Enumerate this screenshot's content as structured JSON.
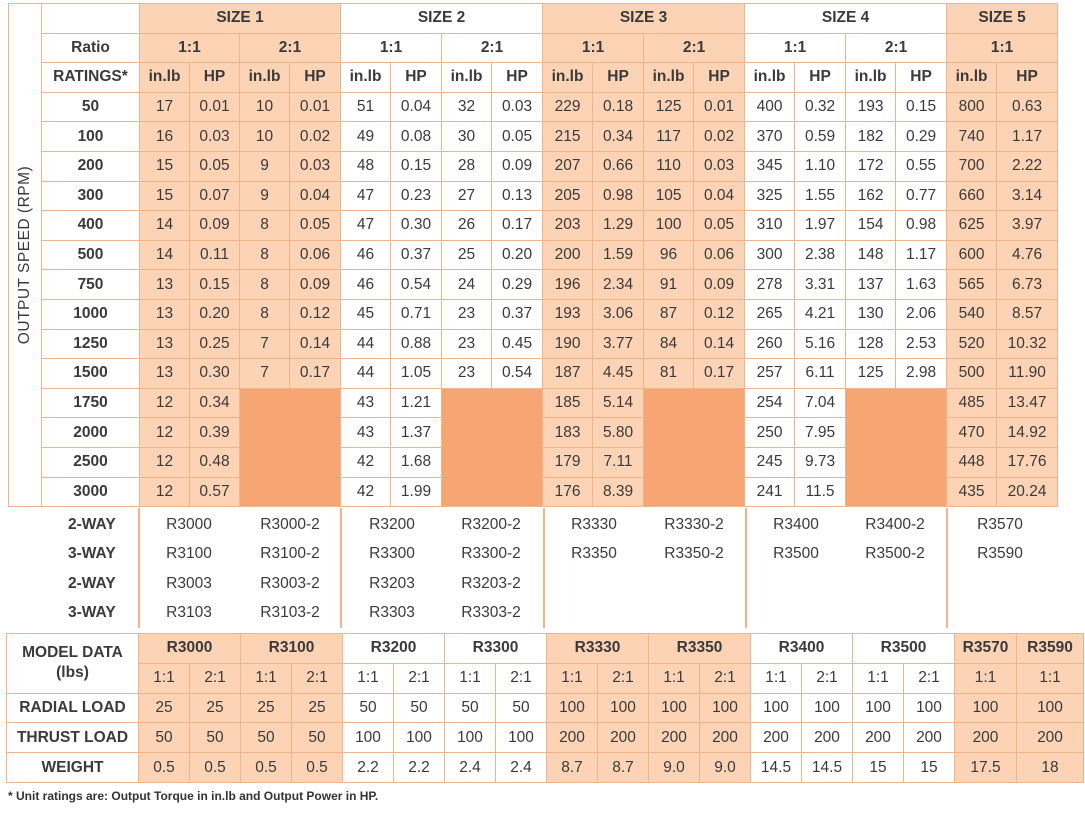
{
  "ratings_table": {
    "side_label": "OUTPUT SPEED (RPM)",
    "sizes": [
      "SIZE 1",
      "SIZE 2",
      "SIZE 3",
      "SIZE 4",
      "SIZE 5"
    ],
    "ratio_label": "Ratio",
    "ratios": [
      "1:1",
      "2:1",
      "1:1",
      "2:1",
      "1:1",
      "2:1",
      "1:1",
      "2:1",
      "1:1"
    ],
    "ratings_label": "RATINGS*",
    "unit_torque": "in.lb",
    "unit_hp": "HP",
    "rows": [
      [
        "50",
        "17",
        "0.01",
        "10",
        "0.01",
        "51",
        "0.04",
        "32",
        "0.03",
        "229",
        "0.18",
        "125",
        "0.01",
        "400",
        "0.32",
        "193",
        "0.15",
        "800",
        "0.63"
      ],
      [
        "100",
        "16",
        "0.03",
        "10",
        "0.02",
        "49",
        "0.08",
        "30",
        "0.05",
        "215",
        "0.34",
        "117",
        "0.02",
        "370",
        "0.59",
        "182",
        "0.29",
        "740",
        "1.17"
      ],
      [
        "200",
        "15",
        "0.05",
        "9",
        "0.03",
        "48",
        "0.15",
        "28",
        "0.09",
        "207",
        "0.66",
        "110",
        "0.03",
        "345",
        "1.10",
        "172",
        "0.55",
        "700",
        "2.22"
      ],
      [
        "300",
        "15",
        "0.07",
        "9",
        "0.04",
        "47",
        "0.23",
        "27",
        "0.13",
        "205",
        "0.98",
        "105",
        "0.04",
        "325",
        "1.55",
        "162",
        "0.77",
        "660",
        "3.14"
      ],
      [
        "400",
        "14",
        "0.09",
        "8",
        "0.05",
        "47",
        "0.30",
        "26",
        "0.17",
        "203",
        "1.29",
        "100",
        "0.05",
        "310",
        "1.97",
        "154",
        "0.98",
        "625",
        "3.97"
      ],
      [
        "500",
        "14",
        "0.11",
        "8",
        "0.06",
        "46",
        "0.37",
        "25",
        "0.20",
        "200",
        "1.59",
        "96",
        "0.06",
        "300",
        "2.38",
        "148",
        "1.17",
        "600",
        "4.76"
      ],
      [
        "750",
        "13",
        "0.15",
        "8",
        "0.09",
        "46",
        "0.54",
        "24",
        "0.29",
        "196",
        "2.34",
        "91",
        "0.09",
        "278",
        "3.31",
        "137",
        "1.63",
        "565",
        "6.73"
      ],
      [
        "1000",
        "13",
        "0.20",
        "8",
        "0.12",
        "45",
        "0.71",
        "23",
        "0.37",
        "193",
        "3.06",
        "87",
        "0.12",
        "265",
        "4.21",
        "130",
        "2.06",
        "540",
        "8.57"
      ],
      [
        "1250",
        "13",
        "0.25",
        "7",
        "0.14",
        "44",
        "0.88",
        "23",
        "0.45",
        "190",
        "3.77",
        "84",
        "0.14",
        "260",
        "5.16",
        "128",
        "2.53",
        "520",
        "10.32"
      ],
      [
        "1500",
        "13",
        "0.30",
        "7",
        "0.17",
        "44",
        "1.05",
        "23",
        "0.54",
        "187",
        "4.45",
        "81",
        "0.17",
        "257",
        "6.11",
        "125",
        "2.98",
        "500",
        "11.90"
      ],
      [
        "1750",
        "12",
        "0.34",
        null,
        null,
        "43",
        "1.21",
        null,
        null,
        "185",
        "5.14",
        null,
        null,
        "254",
        "7.04",
        null,
        null,
        "485",
        "13.47"
      ],
      [
        "2000",
        "12",
        "0.39",
        null,
        null,
        "43",
        "1.37",
        null,
        null,
        "183",
        "5.80",
        null,
        null,
        "250",
        "7.95",
        null,
        null,
        "470",
        "14.92"
      ],
      [
        "2500",
        "12",
        "0.48",
        null,
        null,
        "42",
        "1.68",
        null,
        null,
        "179",
        "7.11",
        null,
        null,
        "245",
        "9.73",
        null,
        null,
        "448",
        "17.76"
      ],
      [
        "3000",
        "12",
        "0.57",
        null,
        null,
        "42",
        "1.99",
        null,
        null,
        "176",
        "8.39",
        null,
        null,
        "241",
        "11.5",
        null,
        null,
        "435",
        "20.24"
      ]
    ]
  },
  "models": {
    "way_labels": [
      "2-WAY",
      "3-WAY",
      "2-WAY",
      "3-WAY"
    ],
    "columns": [
      {
        "items": [
          "R3000",
          "R3100",
          "R3003",
          "R3103"
        ]
      },
      {
        "items": [
          "R3000-2",
          "R3100-2",
          "R3003-2",
          "R3103-2"
        ]
      },
      {
        "items": [
          "R3200",
          "R3300",
          "R3203",
          "R3303"
        ]
      },
      {
        "items": [
          "R3200-2",
          "R3300-2",
          "R3203-2",
          "R3303-2"
        ]
      },
      {
        "items": [
          "R3330",
          "R3350"
        ]
      },
      {
        "items": [
          "R3330-2",
          "R3350-2"
        ]
      },
      {
        "items": [
          "R3400",
          "R3500"
        ]
      },
      {
        "items": [
          "R3400-2",
          "R3500-2"
        ]
      },
      {
        "items": [
          "R3570",
          "R3590"
        ]
      }
    ]
  },
  "model_data_table": {
    "title": "MODEL DATA (lbs)",
    "models": [
      "R3000",
      "R3100",
      "R3200",
      "R3300",
      "R3330",
      "R3350",
      "R3400",
      "R3500",
      "R3570",
      "R3590"
    ],
    "ratios": [
      "1:1",
      "2:1",
      "1:1",
      "2:1",
      "1:1",
      "2:1",
      "1:1",
      "2:1",
      "1:1",
      "2:1",
      "1:1",
      "2:1",
      "1:1",
      "2:1",
      "1:1",
      "2:1",
      "1:1",
      "1:1"
    ],
    "rows": [
      {
        "label": "RADIAL LOAD",
        "values": [
          "25",
          "25",
          "25",
          "25",
          "50",
          "50",
          "50",
          "50",
          "100",
          "100",
          "100",
          "100",
          "100",
          "100",
          "100",
          "100",
          "100",
          "100"
        ]
      },
      {
        "label": "THRUST LOAD",
        "values": [
          "50",
          "50",
          "50",
          "50",
          "100",
          "100",
          "100",
          "100",
          "200",
          "200",
          "200",
          "200",
          "200",
          "200",
          "200",
          "200",
          "200",
          "200"
        ]
      },
      {
        "label": "WEIGHT",
        "values": [
          "0.5",
          "0.5",
          "0.5",
          "0.5",
          "2.2",
          "2.2",
          "2.4",
          "2.4",
          "8.7",
          "8.7",
          "9.0",
          "9.0",
          "14.5",
          "14.5",
          "15",
          "15",
          "17.5",
          "18"
        ]
      }
    ]
  },
  "footnote": "* Unit ratings are: Output Torque in in.lb and Output Power in HP.",
  "colors": {
    "peach": "#fcd3b5",
    "dark": "#f7a673",
    "border": "#f0b48c"
  }
}
